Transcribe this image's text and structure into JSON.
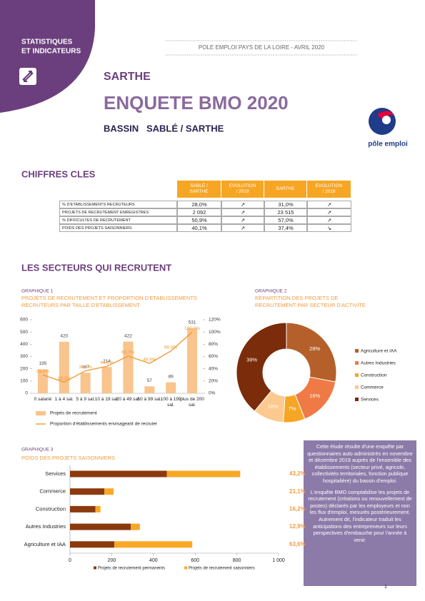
{
  "header": {
    "badge": [
      "STATISTIQUES",
      "ET INDICATEURS"
    ],
    "source": "POLE EMPLOI PAYS DE LA LOIRE - AVRIL 2020",
    "department": "SARTHE",
    "title": "ENQUETE BMO 2020",
    "subtitle": "BASSIN   SABLÉ / SARTHE",
    "logo": "pôle emploi"
  },
  "key_figures": {
    "title": "CHIFFRES CLES",
    "columns": [
      "SABLÉ / SARTHE",
      "EVOLUTION / 2019",
      "SARTHE",
      "EVOLUTION / 2019"
    ],
    "rows": [
      [
        "% D'ETABLISSEMENTS RECRUTEURS",
        "28,0%",
        "↗",
        "31,0%",
        "↗"
      ],
      [
        "PROJETS DE RECRUTEMENT ENREGISTRES",
        "2 092",
        "↗",
        "23 515",
        "↗"
      ],
      [
        "% DIFFICULTES DE RECRUTEMENT",
        "50,9%",
        "↗",
        "57,0%",
        "↗"
      ],
      [
        "POIDS DES PROJETS SAISONNIERS",
        "40,1%",
        "↗",
        "37,4%",
        "↘"
      ]
    ]
  },
  "section_title": "LES SECTEURS QUI RECRUTENT",
  "chart_data": [
    {
      "type": "combo",
      "label": "GRAPHIQUE 1",
      "title": "PROJETS DE RECRUTEMENT ET PROPORTION D'ETABLISSEMENTS RECRUTEURS PAR TAILLE D'ETABLISSEMENT",
      "categories": [
        "0 salarié",
        "1 à 4 sal.",
        "5 à 9 sal.",
        "10 à 19 sal.",
        "20 à 49 sal.",
        "50 à 99 sal.",
        "100 à 199 sal.",
        "plus de 200 sal."
      ],
      "ylim": [
        0,
        600
      ],
      "yticks": [
        0,
        100,
        200,
        300,
        400,
        500,
        600
      ],
      "y2lim": [
        0,
        120
      ],
      "y2ticks": [
        {
          "value": 0,
          "label": "0%"
        },
        {
          "value": 20,
          "label": "20%"
        },
        {
          "value": 40,
          "label": "40%"
        },
        {
          "value": 60,
          "label": "60%"
        },
        {
          "value": 80,
          "label": "80%"
        },
        {
          "value": 100,
          "label": "100%"
        },
        {
          "value": 120,
          "label": "120%"
        }
      ],
      "series": [
        {
          "name": "Projets de recrutement",
          "kind": "bar",
          "color": "#f9c48d",
          "values": [
            195,
            420,
            167,
            214,
            422,
            57,
            89,
            531
          ]
        },
        {
          "name": "Proportion d'établissements envisageant de recruter",
          "kind": "line",
          "axis": "y2",
          "color": "#f39a3b",
          "values": [
            29.9,
            18.2,
            36.7,
            44.1,
            60.7,
            48.9,
            68.9,
            100.0
          ],
          "value_labels": [
            "29,9%",
            "18,2%",
            "36,7%",
            "44,1%",
            "60,7%",
            "48,9%",
            "68,9%",
            "100,0%"
          ]
        }
      ]
    },
    {
      "type": "donut",
      "label": "GRAPHIQUE 2",
      "title": "REPARTITION DES PROJETS DE RECRUTEMENT PAR SECTEUR D'ACTIVITE",
      "categories": [
        "Agriculture et IAA",
        "Autres Industries",
        "Construction",
        "Commerce",
        "Services"
      ],
      "values": [
        28,
        16,
        7,
        10,
        39
      ],
      "value_labels": [
        "28%",
        "16%",
        "7%",
        "10%",
        "39%"
      ],
      "colors": [
        "#b5602b",
        "#f07a45",
        "#f6a623",
        "#fcc98f",
        "#7a2c0b"
      ]
    },
    {
      "type": "stacked_bar",
      "label": "GRAPHIQUE 3",
      "title": "POIDS DES PROJETS SAISONNIERS",
      "categories": [
        "Services",
        "Commerce",
        "Construction",
        "Autres Industries",
        "Agriculture et IAA"
      ],
      "xlim": [
        0,
        1000
      ],
      "xticks": [
        0,
        200,
        400,
        600,
        800,
        {
          "value": 1000,
          "label": "1 000"
        }
      ],
      "series": [
        {
          "name": "Projets de recrutement permanents",
          "color": "#8b3a0e",
          "values": [
            464,
            165,
            122,
            292,
            213
          ]
        },
        {
          "name": "Projets de recrutement saisonniers",
          "color": "#f9a825",
          "values": [
            352,
            44,
            24,
            43,
            373
          ]
        }
      ],
      "shares": {
        "values": [
          43.2,
          21.1,
          16.2,
          12.9,
          63.6
        ],
        "value_labels": [
          "43,2%",
          "21,1%",
          "16,2%",
          "12,9%",
          "63,6%"
        ]
      }
    }
  ],
  "info": [
    "Cette étude résulte d'une enquête par questionnaires auto administrés en novembre et décembre 2019 auprès de l'ensemble des établissements (secteur  privé, agricole, collectivités territoriales, fonction publique hospitalière) du bassin d'emploi.",
    "L'enquête BMO comptabilise les projets de recrutement (créations ou renouvellement de postes) déclarés par les employeurs et non les flux d'emploi, mesurés postérieurement. Autrement dit, l'indicateur traduit les anticipations des entrepreneurs sur leurs perspectives d'embauche pour l'année à venir."
  ],
  "page_number": "1"
}
